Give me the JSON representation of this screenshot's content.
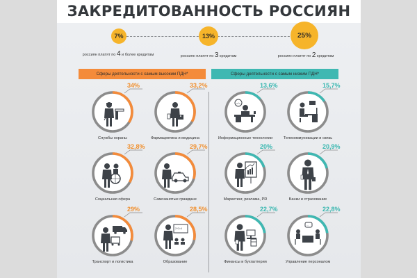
{
  "title": "ЗАКРЕДИТОВАННОСТЬ РОССИЯН",
  "stats": [
    {
      "value": "7%",
      "caption_pre": "россиян платят по ",
      "num": "4",
      "caption_post": " и более кредитам"
    },
    {
      "value": "13%",
      "caption_pre": "россиян платят по ",
      "num": "3",
      "caption_post": " кредитам"
    },
    {
      "value": "25%",
      "caption_pre": "россиян платят по ",
      "num": "2",
      "caption_post": " кредитам"
    }
  ],
  "sections": {
    "high": {
      "header": "Сферы деятельности с самым высоким ПДН*",
      "color": "#f48b3a"
    },
    "low": {
      "header": "Сферы деятельности с самым низким ПДН*",
      "color": "#3fb8b2"
    }
  },
  "high_items": [
    {
      "pct": "34%",
      "value": 34,
      "label": "Службы охраны",
      "icon": "security-guard-icon"
    },
    {
      "pct": "33,2%",
      "value": 33.2,
      "label": "Фармацевтика и медицина",
      "icon": "doctor-icon"
    },
    {
      "pct": "32,8%",
      "value": 32.8,
      "label": "Социальная сфера",
      "icon": "wheelchair-icon"
    },
    {
      "pct": "29,7%",
      "value": 29.7,
      "label": "Самозанятые граждане",
      "icon": "taxi-icon"
    },
    {
      "pct": "29%",
      "value": 29,
      "label": "Транспорт и логистика",
      "icon": "truck-icon"
    },
    {
      "pct": "28,5%",
      "value": 28.5,
      "label": "Образование",
      "icon": "teacher-icon"
    }
  ],
  "low_items": [
    {
      "pct": "13,6%",
      "value": 13.6,
      "label": "Информационные технологии",
      "icon": "programmer-icon"
    },
    {
      "pct": "15,7%",
      "value": 15.7,
      "label": "Телекоммуникации и связь",
      "icon": "operator-icon"
    },
    {
      "pct": "20%",
      "value": 20,
      "label": "Маркетинг, реклама, PR",
      "icon": "presentation-icon"
    },
    {
      "pct": "20,9%",
      "value": 20.9,
      "label": "Банки и страхование",
      "icon": "banker-icon"
    },
    {
      "pct": "22,7%",
      "value": 22.7,
      "label": "Финансы и бухгалтерия",
      "icon": "accountant-icon"
    },
    {
      "pct": "22,8%",
      "value": 22.8,
      "label": "Управление персоналом",
      "icon": "meeting-icon"
    }
  ],
  "colors": {
    "accent_yellow": "#f6b42a",
    "accent_orange": "#f48b3a",
    "accent_teal": "#3fb8b2",
    "ring_gray": "#8c8c8c",
    "icon_dark": "#3d4248"
  }
}
